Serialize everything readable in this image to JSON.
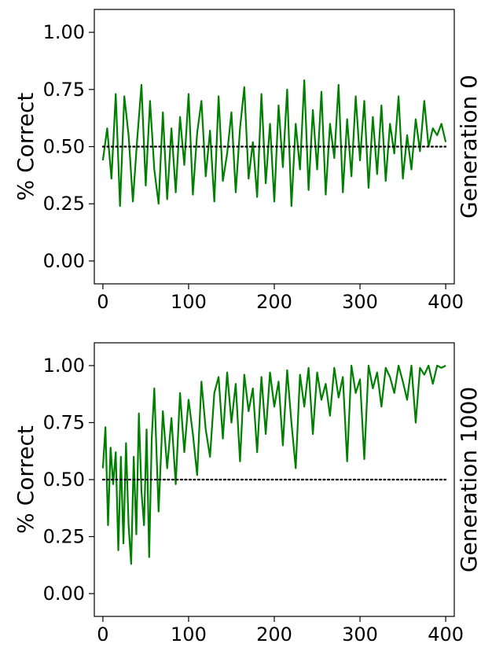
{
  "chart_data": [
    {
      "type": "line",
      "ylabel": "% Correct",
      "side_label": "Generation 0",
      "xlim": [
        -10,
        410
      ],
      "ylim": [
        -0.1,
        1.1
      ],
      "xticks": [
        0,
        100,
        200,
        300,
        400
      ],
      "xtick_labels": [
        "0",
        "100",
        "200",
        "300",
        "400"
      ],
      "yticks": [
        0.0,
        0.25,
        0.5,
        0.75,
        1.0
      ],
      "ytick_labels": [
        "0.00",
        "0.25",
        "0.50",
        "0.75",
        "1.00"
      ],
      "grid": false,
      "series": [
        {
          "style": "line",
          "color": "#008000",
          "x": [
            0,
            5,
            10,
            15,
            20,
            25,
            30,
            35,
            40,
            45,
            50,
            55,
            60,
            65,
            70,
            75,
            80,
            85,
            90,
            95,
            100,
            105,
            110,
            115,
            120,
            125,
            130,
            135,
            140,
            145,
            150,
            155,
            160,
            165,
            170,
            175,
            180,
            185,
            190,
            195,
            200,
            205,
            210,
            215,
            220,
            225,
            230,
            235,
            240,
            245,
            250,
            255,
            260,
            265,
            270,
            275,
            280,
            285,
            290,
            295,
            300,
            305,
            310,
            315,
            320,
            325,
            330,
            335,
            340,
            345,
            350,
            355,
            360,
            365,
            370,
            375,
            380,
            385,
            390,
            395,
            400
          ],
          "y": [
            0.44,
            0.58,
            0.36,
            0.73,
            0.24,
            0.72,
            0.55,
            0.26,
            0.53,
            0.77,
            0.33,
            0.7,
            0.4,
            0.25,
            0.65,
            0.27,
            0.58,
            0.3,
            0.63,
            0.42,
            0.73,
            0.29,
            0.56,
            0.7,
            0.37,
            0.57,
            0.26,
            0.72,
            0.35,
            0.47,
            0.65,
            0.3,
            0.58,
            0.76,
            0.36,
            0.52,
            0.28,
            0.73,
            0.34,
            0.6,
            0.26,
            0.68,
            0.41,
            0.75,
            0.24,
            0.6,
            0.4,
            0.79,
            0.31,
            0.66,
            0.4,
            0.74,
            0.29,
            0.6,
            0.45,
            0.77,
            0.3,
            0.62,
            0.37,
            0.72,
            0.44,
            0.7,
            0.32,
            0.63,
            0.38,
            0.68,
            0.35,
            0.6,
            0.47,
            0.72,
            0.36,
            0.55,
            0.4,
            0.62,
            0.48,
            0.7,
            0.5,
            0.58,
            0.55,
            0.6,
            0.52
          ]
        },
        {
          "style": "dotted",
          "color": "#000000",
          "x": [
            0,
            400
          ],
          "y": [
            0.5,
            0.5
          ]
        }
      ]
    },
    {
      "type": "line",
      "ylabel": "% Correct",
      "side_label": "Generation 1000",
      "xlim": [
        -10,
        410
      ],
      "ylim": [
        -0.1,
        1.1
      ],
      "xticks": [
        0,
        100,
        200,
        300,
        400
      ],
      "xtick_labels": [
        "0",
        "100",
        "200",
        "300",
        "400"
      ],
      "yticks": [
        0.0,
        0.25,
        0.5,
        0.75,
        1.0
      ],
      "ytick_labels": [
        "0.00",
        "0.25",
        "0.50",
        "0.75",
        "1.00"
      ],
      "grid": false,
      "series": [
        {
          "style": "line",
          "color": "#008000",
          "x": [
            0,
            3,
            6,
            9,
            12,
            15,
            18,
            21,
            24,
            27,
            30,
            33,
            36,
            39,
            42,
            45,
            48,
            51,
            54,
            57,
            60,
            65,
            70,
            75,
            80,
            85,
            90,
            95,
            100,
            105,
            110,
            115,
            120,
            125,
            130,
            135,
            140,
            145,
            150,
            155,
            160,
            165,
            170,
            175,
            180,
            185,
            190,
            195,
            200,
            205,
            210,
            215,
            220,
            225,
            230,
            235,
            240,
            245,
            250,
            255,
            260,
            265,
            270,
            275,
            280,
            285,
            290,
            295,
            300,
            305,
            310,
            315,
            320,
            325,
            330,
            335,
            340,
            345,
            350,
            355,
            360,
            365,
            370,
            375,
            380,
            385,
            390,
            395,
            400
          ],
          "y": [
            0.55,
            0.73,
            0.3,
            0.64,
            0.48,
            0.62,
            0.19,
            0.6,
            0.22,
            0.66,
            0.3,
            0.13,
            0.6,
            0.26,
            0.79,
            0.45,
            0.3,
            0.72,
            0.16,
            0.68,
            0.9,
            0.36,
            0.8,
            0.55,
            0.77,
            0.48,
            0.88,
            0.62,
            0.85,
            0.7,
            0.52,
            0.93,
            0.72,
            0.6,
            0.88,
            0.95,
            0.68,
            0.97,
            0.75,
            0.92,
            0.58,
            0.96,
            0.8,
            0.9,
            0.62,
            0.95,
            0.7,
            0.97,
            0.82,
            0.93,
            0.65,
            0.98,
            0.75,
            0.55,
            0.96,
            0.82,
            0.99,
            0.7,
            0.97,
            0.85,
            0.92,
            0.78,
            0.99,
            0.86,
            0.95,
            0.58,
            1.0,
            0.88,
            0.94,
            0.59,
            1.0,
            0.9,
            0.97,
            0.82,
            0.99,
            0.95,
            0.88,
            1.0,
            0.93,
            0.85,
            1.0,
            0.75,
            0.99,
            0.96,
            1.0,
            0.92,
            1.0,
            0.99,
            1.0
          ]
        },
        {
          "style": "dotted",
          "color": "#000000",
          "x": [
            0,
            400
          ],
          "y": [
            0.5,
            0.5
          ]
        }
      ]
    }
  ]
}
